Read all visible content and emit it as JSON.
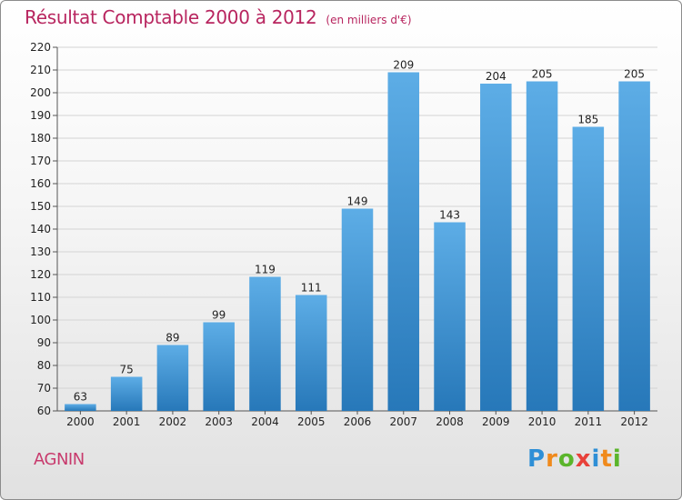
{
  "title": {
    "main": "Résultat Comptable 2000 à 2012",
    "unit": "(en milliers d'€)"
  },
  "place": "AGNIN",
  "logo": {
    "letters": [
      "P",
      "r",
      "o",
      "x",
      "i",
      "t",
      "i"
    ],
    "colors": [
      "#2e8fd6",
      "#f08a1c",
      "#5bb52b",
      "#e8413a",
      "#2e8fd6",
      "#f08a1c",
      "#5bb52b"
    ]
  },
  "colors": {
    "bar_light": "#5dade6",
    "bar_dark": "#2778b9",
    "title": "#b8255f",
    "grid": "#d4d4d4"
  },
  "chart_data": {
    "type": "bar",
    "title": "Résultat Comptable 2000 à 2012",
    "subtitle": "(en milliers d'€)",
    "xlabel": "",
    "ylabel": "",
    "categories": [
      "2000",
      "2001",
      "2002",
      "2003",
      "2004",
      "2005",
      "2006",
      "2007",
      "2008",
      "2009",
      "2010",
      "2011",
      "2012"
    ],
    "values": [
      63,
      75,
      89,
      99,
      119,
      111,
      149,
      209,
      143,
      204,
      205,
      185,
      205
    ],
    "ylim": [
      60,
      220
    ],
    "yticks": [
      60,
      70,
      80,
      90,
      100,
      110,
      120,
      130,
      140,
      150,
      160,
      170,
      180,
      190,
      200,
      210,
      220
    ],
    "grid": true,
    "data_labels": true
  }
}
